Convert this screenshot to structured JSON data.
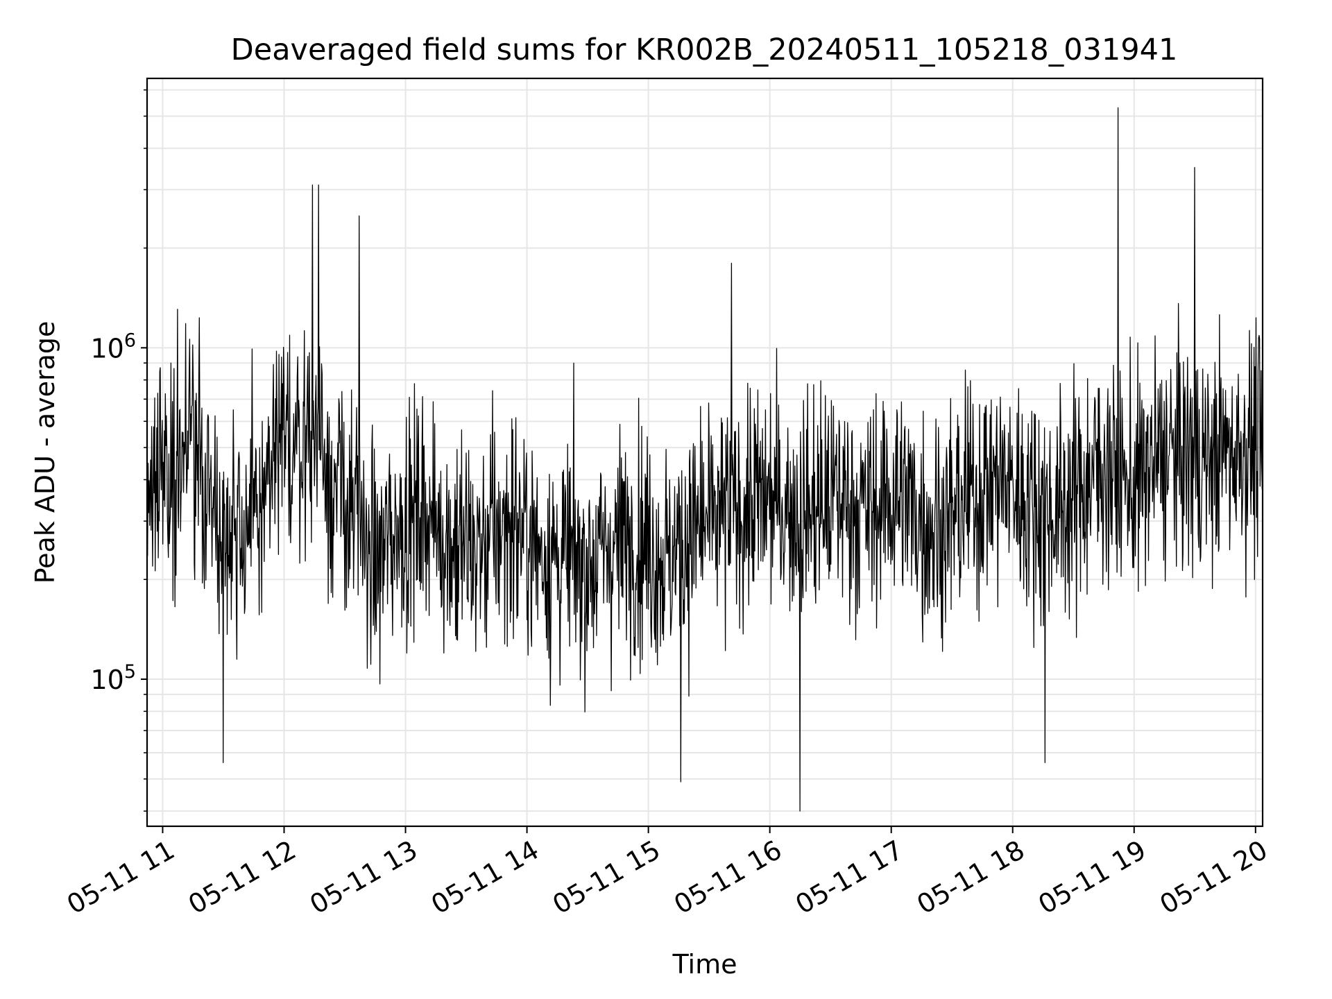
{
  "chart_data": {
    "type": "line",
    "title": "Deaveraged field sums for KR002B_20240511_105218_031941",
    "xlabel": "Time",
    "ylabel": "Peak ADU - average",
    "x_axis": {
      "type": "datetime",
      "range": [
        "2024-05-11 10:52:18",
        "2024-05-11 20:03:30"
      ],
      "tick_values": [
        "2024-05-11 11:00",
        "2024-05-11 12:00",
        "2024-05-11 13:00",
        "2024-05-11 14:00",
        "2024-05-11 15:00",
        "2024-05-11 16:00",
        "2024-05-11 17:00",
        "2024-05-11 18:00",
        "2024-05-11 19:00",
        "2024-05-11 20:00"
      ],
      "tick_labels": [
        "05-11 11",
        "05-11 12",
        "05-11 13",
        "05-11 14",
        "05-11 15",
        "05-11 16",
        "05-11 17",
        "05-11 18",
        "05-11 19",
        "05-11 20"
      ]
    },
    "y_axis": {
      "scale": "log",
      "range": [
        36000,
        6500000
      ],
      "major_ticks": [
        100000,
        1000000
      ],
      "tick_label_base": "10",
      "tick_label_exponents": [
        "5",
        "6"
      ]
    },
    "grid": true,
    "legend": "none",
    "line_color": "#000000",
    "series": [
      {
        "x_minutes_from_start": [
          0,
          6,
          12,
          18,
          24,
          30,
          36,
          42,
          48,
          54,
          60,
          66,
          72,
          78,
          84,
          90,
          96,
          102,
          108,
          114,
          120,
          126,
          132,
          138,
          144,
          150,
          156,
          162,
          168,
          174,
          180,
          186,
          192,
          198,
          204,
          210,
          216,
          222,
          228,
          234,
          240,
          246,
          252,
          258,
          264,
          270,
          276,
          282,
          288,
          294,
          300,
          306,
          312,
          318,
          324,
          330,
          336,
          342,
          348,
          354,
          360,
          366,
          372,
          378,
          384,
          390,
          396,
          402,
          408,
          414,
          420,
          426,
          432,
          438,
          444,
          450,
          456,
          462,
          468,
          474,
          480,
          486,
          492,
          498,
          504,
          510,
          516,
          522,
          528,
          534,
          540,
          546,
          551
        ],
        "values": [
          350000,
          450000,
          420000,
          520000,
          480000,
          380000,
          300000,
          320000,
          280000,
          300000,
          400000,
          480000,
          520000,
          560000,
          600000,
          420000,
          350000,
          320000,
          260000,
          220000,
          270000,
          300000,
          310000,
          330000,
          290000,
          260000,
          250000,
          240000,
          260000,
          280000,
          300000,
          280000,
          250000,
          240000,
          230000,
          230000,
          220000,
          230000,
          250000,
          260000,
          270000,
          260000,
          240000,
          230000,
          250000,
          280000,
          290000,
          300000,
          320000,
          330000,
          340000,
          350000,
          340000,
          330000,
          320000,
          330000,
          340000,
          360000,
          340000,
          320000,
          330000,
          350000,
          360000,
          330000,
          300000,
          290000,
          300000,
          330000,
          360000,
          380000,
          400000,
          380000,
          360000,
          340000,
          330000,
          320000,
          340000,
          380000,
          420000,
          440000,
          400000,
          380000,
          400000,
          450000,
          470000,
          480000,
          460000,
          450000,
          470000,
          490000,
          500000,
          510000,
          520000
        ]
      }
    ],
    "notable_peaks": [
      {
        "x": "2024-05-11 18:52",
        "value": 5300000
      },
      {
        "x": "2024-05-11 19:30",
        "value": 3500000
      },
      {
        "x": "2024-05-11 12:14",
        "value": 3100000
      },
      {
        "x": "2024-05-11 12:17",
        "value": 3100000
      },
      {
        "x": "2024-05-11 12:37",
        "value": 2500000
      },
      {
        "x": "2024-05-11 15:41",
        "value": 1800000
      }
    ],
    "notable_dips": [
      {
        "x": "2024-05-11 16:15",
        "value": 40000
      },
      {
        "x": "2024-05-11 15:16",
        "value": 49000
      },
      {
        "x": "2024-05-11 11:30",
        "value": 56000
      },
      {
        "x": "2024-05-11 18:16",
        "value": 56000
      }
    ]
  }
}
